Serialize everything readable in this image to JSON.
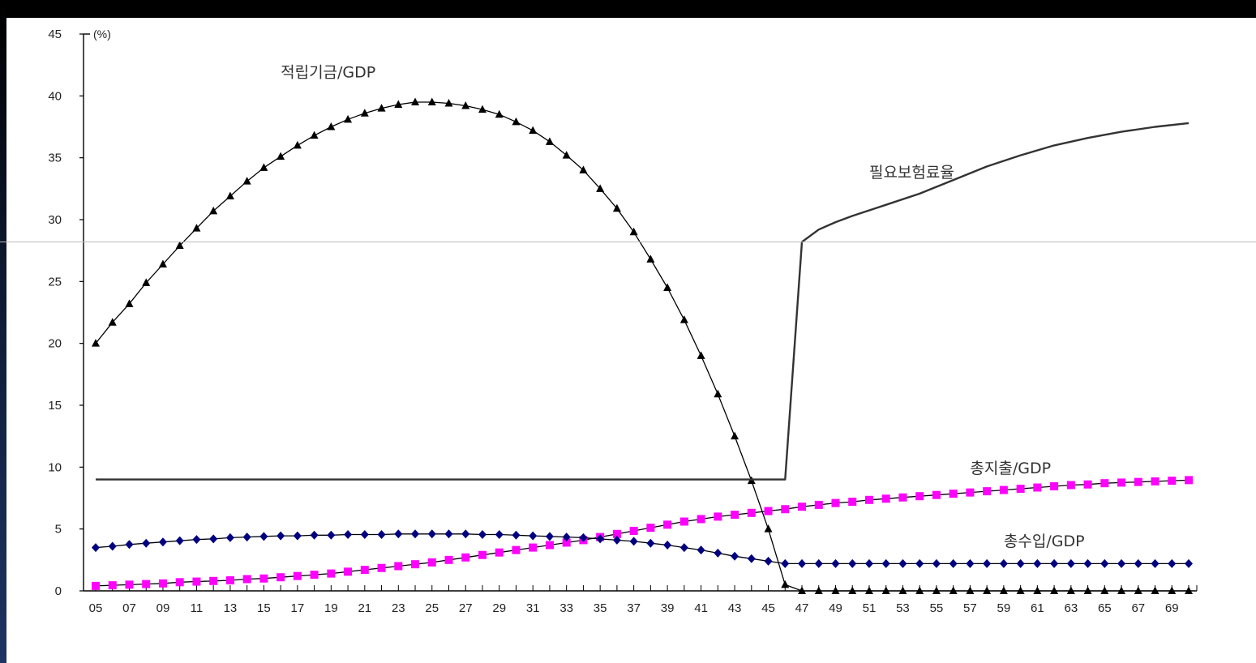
{
  "chart_data": {
    "type": "line",
    "title": "",
    "xlabel": "",
    "ylabel": "",
    "y_unit_label": "(%)",
    "ylim": [
      0,
      45
    ],
    "yticks": [
      0,
      5,
      10,
      15,
      20,
      25,
      30,
      35,
      40,
      45
    ],
    "xlim": [
      2005,
      2070
    ],
    "x_tick_labels": [
      "05",
      "07",
      "09",
      "11",
      "13",
      "15",
      "17",
      "19",
      "21",
      "23",
      "25",
      "27",
      "29",
      "31",
      "33",
      "35",
      "37",
      "39",
      "41",
      "43",
      "45",
      "47",
      "49",
      "51",
      "53",
      "55",
      "57",
      "59",
      "61",
      "63",
      "65",
      "67",
      "69"
    ],
    "grid": false,
    "series": [
      {
        "name": "적립기금/GDP",
        "color": "#000000",
        "marker": "triangle",
        "x": [
          2005,
          2006,
          2007,
          2008,
          2009,
          2010,
          2011,
          2012,
          2013,
          2014,
          2015,
          2016,
          2017,
          2018,
          2019,
          2020,
          2021,
          2022,
          2023,
          2024,
          2025,
          2026,
          2027,
          2028,
          2029,
          2030,
          2031,
          2032,
          2033,
          2034,
          2035,
          2036,
          2037,
          2038,
          2039,
          2040,
          2041,
          2042,
          2043,
          2044,
          2045,
          2046,
          2047,
          2048,
          2049,
          2050,
          2051,
          2052,
          2053,
          2054,
          2055,
          2056,
          2057,
          2058,
          2059,
          2060,
          2061,
          2062,
          2063,
          2064,
          2065,
          2066,
          2067,
          2068,
          2069,
          2070
        ],
        "values": [
          20.0,
          21.7,
          23.2,
          24.9,
          26.4,
          27.9,
          29.3,
          30.7,
          31.9,
          33.1,
          34.2,
          35.1,
          36.0,
          36.8,
          37.5,
          38.1,
          38.6,
          39.0,
          39.3,
          39.5,
          39.5,
          39.4,
          39.2,
          38.9,
          38.5,
          37.9,
          37.2,
          36.3,
          35.2,
          34.0,
          32.5,
          30.9,
          29.0,
          26.8,
          24.5,
          21.9,
          19.0,
          15.9,
          12.5,
          8.9,
          5.0,
          0.5,
          0,
          0,
          0,
          0,
          0,
          0,
          0,
          0,
          0,
          0,
          0,
          0,
          0,
          0,
          0,
          0,
          0,
          0,
          0,
          0,
          0,
          0,
          0,
          0
        ]
      },
      {
        "name": "필요보험료율",
        "color": "#000000",
        "marker": "none",
        "x": [
          2005,
          2046,
          2047,
          2048,
          2049,
          2050,
          2052,
          2054,
          2056,
          2058,
          2060,
          2062,
          2064,
          2066,
          2068,
          2070
        ],
        "values": [
          9.0,
          9.0,
          28.2,
          29.2,
          29.8,
          30.3,
          31.2,
          32.1,
          33.2,
          34.3,
          35.2,
          36.0,
          36.6,
          37.1,
          37.5,
          37.8
        ]
      },
      {
        "name": "총지출/GDP",
        "color": "#ff00ff",
        "marker": "square",
        "x": [
          2005,
          2006,
          2007,
          2008,
          2009,
          2010,
          2011,
          2012,
          2013,
          2014,
          2015,
          2016,
          2017,
          2018,
          2019,
          2020,
          2021,
          2022,
          2023,
          2024,
          2025,
          2026,
          2027,
          2028,
          2029,
          2030,
          2031,
          2032,
          2033,
          2034,
          2035,
          2036,
          2037,
          2038,
          2039,
          2040,
          2041,
          2042,
          2043,
          2044,
          2045,
          2046,
          2047,
          2048,
          2049,
          2050,
          2051,
          2052,
          2053,
          2054,
          2055,
          2056,
          2057,
          2058,
          2059,
          2060,
          2061,
          2062,
          2063,
          2064,
          2065,
          2066,
          2067,
          2068,
          2069,
          2070
        ],
        "values": [
          0.4,
          0.45,
          0.5,
          0.55,
          0.6,
          0.7,
          0.75,
          0.8,
          0.85,
          0.95,
          1.0,
          1.1,
          1.2,
          1.3,
          1.4,
          1.55,
          1.7,
          1.85,
          2.0,
          2.15,
          2.3,
          2.5,
          2.7,
          2.9,
          3.1,
          3.3,
          3.5,
          3.7,
          3.9,
          4.1,
          4.35,
          4.6,
          4.85,
          5.1,
          5.35,
          5.6,
          5.8,
          6.0,
          6.15,
          6.3,
          6.45,
          6.6,
          6.8,
          6.95,
          7.1,
          7.2,
          7.35,
          7.45,
          7.55,
          7.65,
          7.75,
          7.85,
          7.95,
          8.05,
          8.15,
          8.25,
          8.35,
          8.45,
          8.55,
          8.6,
          8.7,
          8.75,
          8.8,
          8.85,
          8.9,
          8.95
        ]
      },
      {
        "name": "총수입/GDP",
        "color": "#000080",
        "marker": "diamond",
        "x": [
          2005,
          2006,
          2007,
          2008,
          2009,
          2010,
          2011,
          2012,
          2013,
          2014,
          2015,
          2016,
          2017,
          2018,
          2019,
          2020,
          2021,
          2022,
          2023,
          2024,
          2025,
          2026,
          2027,
          2028,
          2029,
          2030,
          2031,
          2032,
          2033,
          2034,
          2035,
          2036,
          2037,
          2038,
          2039,
          2040,
          2041,
          2042,
          2043,
          2044,
          2045,
          2046,
          2047,
          2048,
          2049,
          2050,
          2051,
          2052,
          2053,
          2054,
          2055,
          2056,
          2057,
          2058,
          2059,
          2060,
          2061,
          2062,
          2063,
          2064,
          2065,
          2066,
          2067,
          2068,
          2069,
          2070
        ],
        "values": [
          3.5,
          3.6,
          3.75,
          3.85,
          3.95,
          4.05,
          4.15,
          4.2,
          4.3,
          4.35,
          4.4,
          4.45,
          4.45,
          4.5,
          4.5,
          4.55,
          4.55,
          4.55,
          4.6,
          4.6,
          4.6,
          4.6,
          4.6,
          4.55,
          4.55,
          4.5,
          4.45,
          4.4,
          4.35,
          4.3,
          4.2,
          4.1,
          4.0,
          3.85,
          3.7,
          3.5,
          3.3,
          3.05,
          2.8,
          2.6,
          2.4,
          2.2,
          2.2,
          2.2,
          2.2,
          2.2,
          2.2,
          2.2,
          2.2,
          2.2,
          2.2,
          2.2,
          2.2,
          2.2,
          2.2,
          2.2,
          2.2,
          2.2,
          2.2,
          2.2,
          2.2,
          2.2,
          2.2,
          2.2,
          2.2,
          2.2
        ]
      }
    ],
    "annotations": [
      {
        "text": "적립기금/GDP",
        "x": 2016,
        "y": 41.5
      },
      {
        "text": "필요보험료율",
        "x": 2051,
        "y": 33.4
      },
      {
        "text": "총지출/GDP",
        "x": 2057,
        "y": 9.5
      },
      {
        "text": "총수입/GDP",
        "x": 2059,
        "y": 3.6
      }
    ],
    "reference_line": {
      "y": 28.2,
      "color": "#bbbbbb"
    }
  }
}
